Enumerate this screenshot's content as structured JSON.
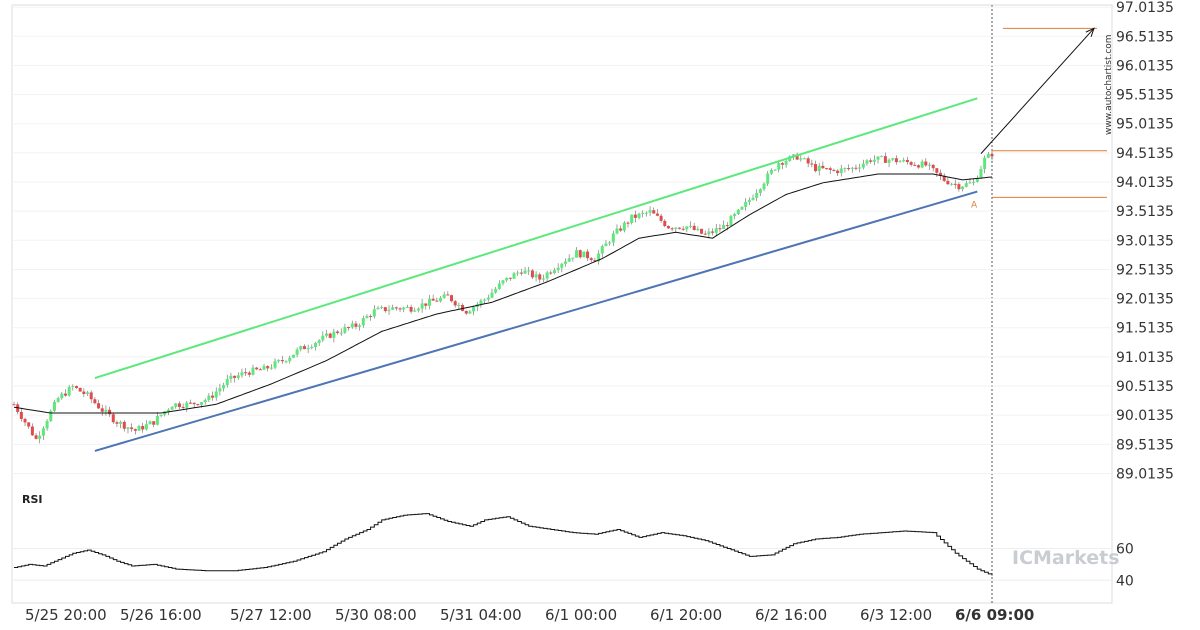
{
  "chart_data": {
    "type": "candlestick",
    "instrument_note": "",
    "y_axis": {
      "ticks": [
        "97.0135",
        "96.5135",
        "96.0135",
        "95.5135",
        "95.0135",
        "94.5135",
        "94.0135",
        "93.5135",
        "93.0135",
        "92.5135",
        "92.0135",
        "91.5135",
        "91.0135",
        "90.5135",
        "90.0135",
        "89.5135",
        "89.0135"
      ],
      "range": [
        88.85,
        97.05
      ]
    },
    "x_axis": {
      "ticks": [
        "5/25 20:00",
        "5/26 16:00",
        "5/27 12:00",
        "5/30 08:00",
        "5/31 04:00",
        "6/1 00:00",
        "6/1 20:00",
        "6/2 16:00",
        "6/3 12:00",
        "6/6 09:00"
      ],
      "highlight": "6/6 09:00"
    },
    "price_path": [
      [
        0,
        90.2
      ],
      [
        6,
        89.6
      ],
      [
        12,
        90.3
      ],
      [
        16,
        90.5
      ],
      [
        20,
        90.35
      ],
      [
        24,
        90.1
      ],
      [
        28,
        89.9
      ],
      [
        33,
        89.75
      ],
      [
        38,
        89.9
      ],
      [
        43,
        90.2
      ],
      [
        48,
        90.2
      ],
      [
        53,
        90.3
      ],
      [
        58,
        90.6
      ],
      [
        63,
        90.75
      ],
      [
        68,
        90.8
      ],
      [
        73,
        90.95
      ],
      [
        78,
        91.15
      ],
      [
        83,
        91.3
      ],
      [
        88,
        91.45
      ],
      [
        93,
        91.55
      ],
      [
        98,
        91.8
      ],
      [
        103,
        91.85
      ],
      [
        108,
        91.85
      ],
      [
        113,
        91.95
      ],
      [
        118,
        92.05
      ],
      [
        123,
        91.8
      ],
      [
        128,
        92.0
      ],
      [
        133,
        92.3
      ],
      [
        138,
        92.5
      ],
      [
        143,
        92.35
      ],
      [
        148,
        92.6
      ],
      [
        153,
        92.8
      ],
      [
        158,
        92.7
      ],
      [
        163,
        93.1
      ],
      [
        168,
        93.4
      ],
      [
        173,
        93.5
      ],
      [
        178,
        93.25
      ],
      [
        183,
        93.25
      ],
      [
        188,
        93.1
      ],
      [
        193,
        93.25
      ],
      [
        198,
        93.55
      ],
      [
        203,
        93.95
      ],
      [
        208,
        94.35
      ],
      [
        213,
        94.45
      ],
      [
        218,
        94.25
      ],
      [
        223,
        94.2
      ],
      [
        228,
        94.25
      ],
      [
        233,
        94.4
      ],
      [
        238,
        94.4
      ],
      [
        243,
        94.35
      ],
      [
        248,
        94.3
      ],
      [
        253,
        94.05
      ],
      [
        257,
        93.95
      ],
      [
        261,
        94.0
      ],
      [
        264,
        94.4
      ],
      [
        266,
        94.5
      ]
    ],
    "ma_path": [
      [
        0,
        90.15
      ],
      [
        10,
        90.05
      ],
      [
        25,
        90.05
      ],
      [
        40,
        90.05
      ],
      [
        55,
        90.2
      ],
      [
        70,
        90.55
      ],
      [
        85,
        90.95
      ],
      [
        100,
        91.45
      ],
      [
        115,
        91.75
      ],
      [
        130,
        91.95
      ],
      [
        145,
        92.3
      ],
      [
        160,
        92.7
      ],
      [
        170,
        93.05
      ],
      [
        180,
        93.15
      ],
      [
        190,
        93.05
      ],
      [
        200,
        93.45
      ],
      [
        210,
        93.8
      ],
      [
        220,
        94.0
      ],
      [
        235,
        94.15
      ],
      [
        250,
        94.15
      ],
      [
        258,
        94.05
      ],
      [
        266,
        94.1
      ]
    ],
    "channel": {
      "upper": {
        "from": [
          22,
          90.65
        ],
        "to": [
          262,
          95.45
        ],
        "color": "#5ce87a"
      },
      "lower": {
        "from": [
          22,
          89.4
        ],
        "to": [
          262,
          93.85
        ],
        "color": "#4d74b3"
      }
    },
    "projection": {
      "from": [
        263,
        94.5
      ],
      "to": [
        291,
        96.65
      ]
    },
    "target_level": 96.65,
    "levels": [
      94.55,
      93.75
    ],
    "pattern_point": {
      "label": "A",
      "value": 93.75
    },
    "rsi": {
      "label": "RSI",
      "ticks": [
        "60",
        "40"
      ],
      "path": [
        [
          0,
          48
        ],
        [
          4,
          50
        ],
        [
          8,
          49
        ],
        [
          12,
          53
        ],
        [
          16,
          57
        ],
        [
          20,
          59
        ],
        [
          24,
          56
        ],
        [
          28,
          52
        ],
        [
          32,
          49
        ],
        [
          38,
          50
        ],
        [
          44,
          47
        ],
        [
          52,
          46
        ],
        [
          60,
          46
        ],
        [
          68,
          48
        ],
        [
          76,
          52
        ],
        [
          84,
          58
        ],
        [
          90,
          66
        ],
        [
          96,
          72
        ],
        [
          100,
          78
        ],
        [
          106,
          81
        ],
        [
          112,
          82
        ],
        [
          118,
          77
        ],
        [
          124,
          74
        ],
        [
          128,
          78
        ],
        [
          134,
          80
        ],
        [
          140,
          74
        ],
        [
          146,
          72
        ],
        [
          152,
          70
        ],
        [
          158,
          69
        ],
        [
          164,
          72
        ],
        [
          170,
          67
        ],
        [
          176,
          70
        ],
        [
          182,
          68
        ],
        [
          188,
          65
        ],
        [
          194,
          60
        ],
        [
          200,
          55
        ],
        [
          206,
          56
        ],
        [
          212,
          63
        ],
        [
          218,
          66
        ],
        [
          224,
          67
        ],
        [
          230,
          69
        ],
        [
          236,
          70
        ],
        [
          242,
          71
        ],
        [
          250,
          70
        ],
        [
          256,
          57
        ],
        [
          262,
          47
        ],
        [
          266,
          43
        ]
      ],
      "range": [
        20,
        100
      ]
    },
    "colors": {
      "up": "#5ce87a",
      "down": "#e04b4b",
      "ma": "#111111",
      "levels": "#e07b39"
    }
  },
  "watermark": "www.autochartist.com",
  "brand": "ICMarkets"
}
